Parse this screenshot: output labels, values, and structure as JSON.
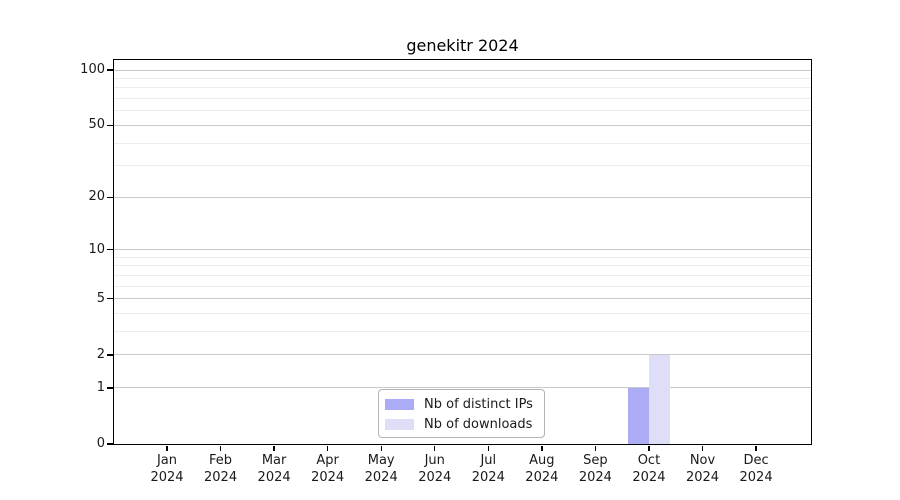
{
  "chart_data": {
    "type": "bar",
    "title": "genekitr 2024",
    "xlabel": "",
    "ylabel": "",
    "categories": [
      "Jan",
      "Feb",
      "Mar",
      "Apr",
      "May",
      "Jun",
      "Jul",
      "Aug",
      "Sep",
      "Oct",
      "Nov",
      "Dec"
    ],
    "year_label": "2024",
    "series": [
      {
        "name": "Nb of distinct IPs",
        "color": "#acacf6",
        "values": [
          0,
          0,
          0,
          0,
          0,
          0,
          0,
          0,
          0,
          1,
          0,
          0
        ]
      },
      {
        "name": "Nb of downloads",
        "color": "#dedef8",
        "values": [
          0,
          0,
          0,
          0,
          0,
          0,
          0,
          0,
          0,
          2,
          0,
          0
        ]
      }
    ],
    "yscale": "log1p",
    "ylim": [
      0,
      113
    ],
    "yticks": [
      0,
      1,
      2,
      5,
      10,
      20,
      50,
      100
    ],
    "minor_gridlines": [
      3,
      4,
      6,
      7,
      8,
      9,
      30,
      40,
      60,
      70,
      80,
      90
    ],
    "grid": true,
    "legend_position": "lower center"
  },
  "colors": {
    "major_grid": "#c9c9c9",
    "minor_grid": "#ededed",
    "spine": "#000000",
    "text": "#1a1a1a"
  }
}
